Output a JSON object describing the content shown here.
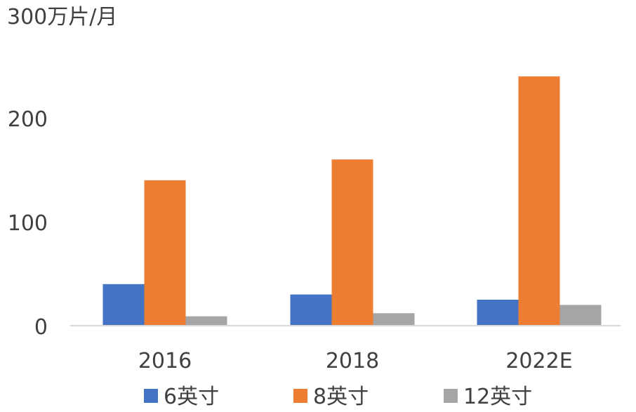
{
  "chart_data": {
    "type": "bar",
    "categories": [
      "2016",
      "2018",
      "2022E"
    ],
    "series": [
      {
        "name": "6英寸",
        "values": [
          40,
          30,
          25
        ],
        "color": "#4472C4"
      },
      {
        "name": "8英寸",
        "values": [
          140,
          160,
          240
        ],
        "color": "#ED7D31"
      },
      {
        "name": "12英寸",
        "values": [
          9,
          12,
          20
        ],
        "color": "#A5A5A5"
      }
    ],
    "y_ticks": [
      "0",
      "100",
      "200"
    ],
    "ylabel": "300万片/月",
    "ylim": [
      0,
      300
    ],
    "grid": false,
    "legend_position": "bottom"
  }
}
